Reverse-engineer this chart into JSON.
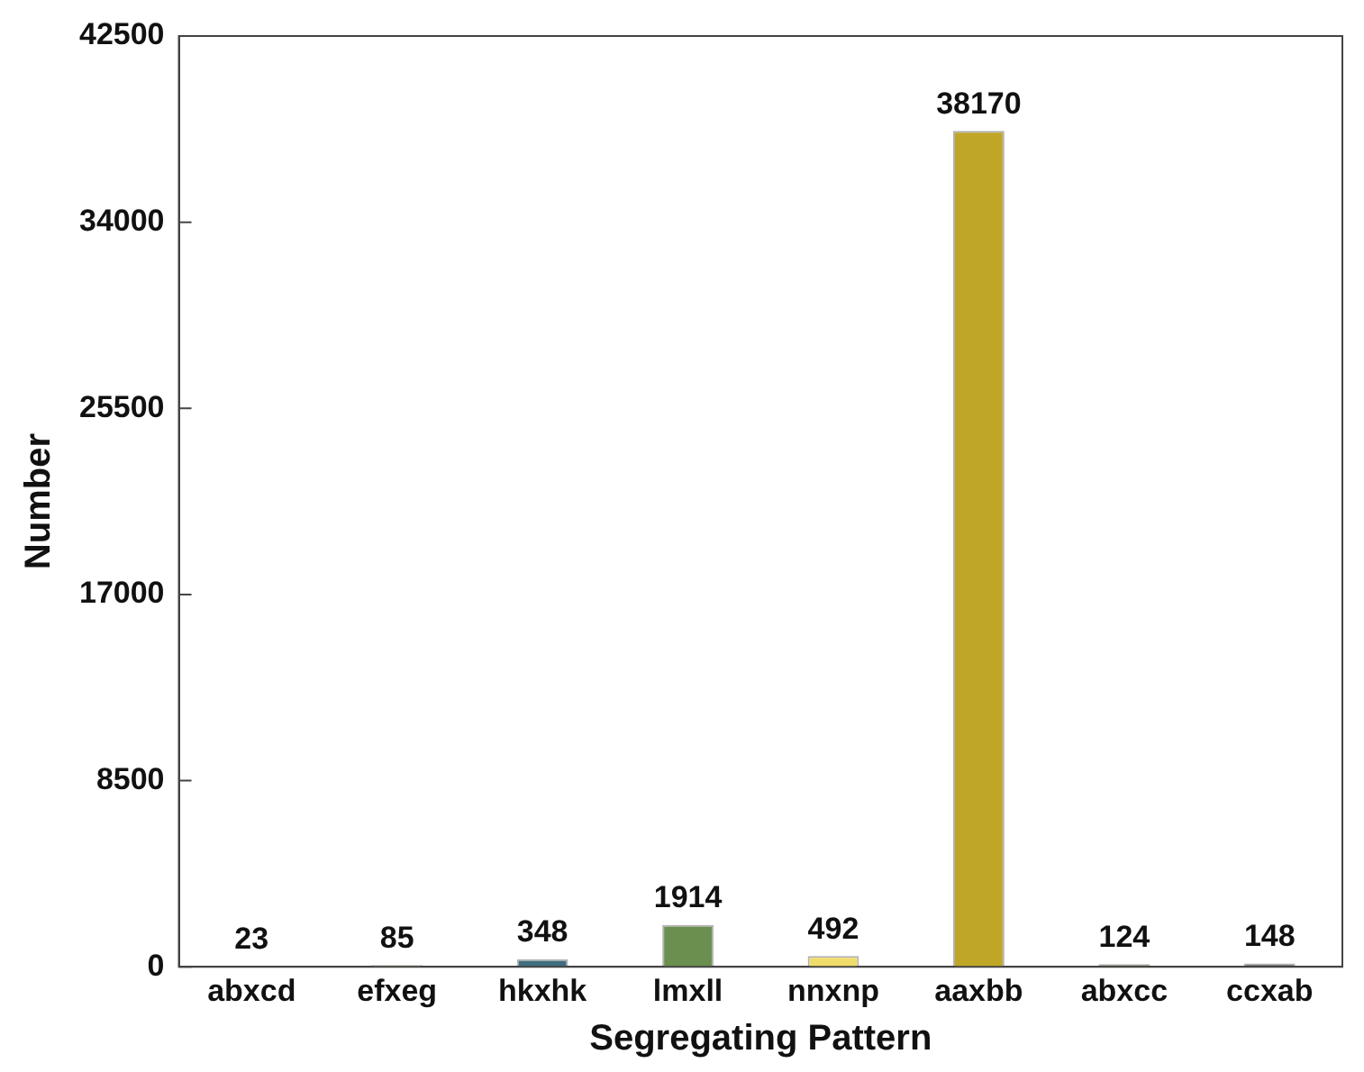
{
  "chart_data": {
    "type": "bar",
    "xlabel": "Segregating Pattern",
    "ylabel": "Number",
    "categories": [
      "abxcd",
      "efxeg",
      "hkxhk",
      "lmxll",
      "nnxnp",
      "aaxbb",
      "abxcc",
      "ccxab"
    ],
    "values": [
      23,
      85,
      348,
      1914,
      492,
      38170,
      124,
      148
    ],
    "colors": [
      "#d9d98c",
      "#c8c88a",
      "#3f6e7e",
      "#6b8f4e",
      "#f0dc6a",
      "#c0a626",
      "#5a5a2a",
      "#2f3b2f"
    ],
    "ylim": [
      0,
      42500
    ],
    "yticks": [
      0,
      8500,
      17000,
      25500,
      34000,
      42500
    ],
    "grid": false,
    "data_labels": true
  }
}
